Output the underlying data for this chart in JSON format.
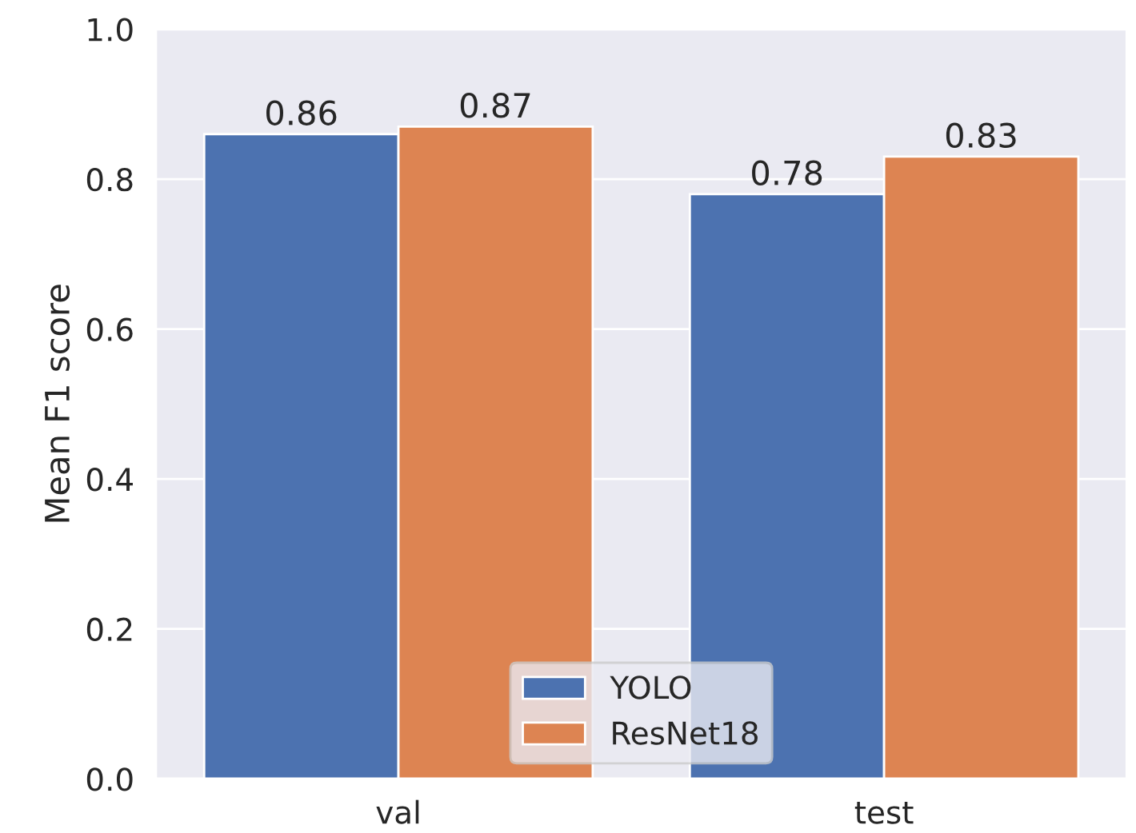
{
  "chart_data": {
    "type": "bar",
    "ylabel": "Mean F1 score",
    "categories": [
      "val",
      "test"
    ],
    "series": [
      {
        "name": "YOLO",
        "color": "#4c72b0",
        "values": [
          0.86,
          0.78
        ]
      },
      {
        "name": "ResNet18",
        "color": "#dd8452",
        "values": [
          0.87,
          0.83
        ]
      }
    ],
    "ylim": [
      0.0,
      1.0
    ],
    "yticks": [
      {
        "value": 0.0,
        "label": "0.0"
      },
      {
        "value": 0.2,
        "label": "0.2"
      },
      {
        "value": 0.4,
        "label": "0.4"
      },
      {
        "value": 0.6,
        "label": "0.6"
      },
      {
        "value": 0.8,
        "label": "0.8"
      },
      {
        "value": 1.0,
        "label": "1.0"
      }
    ],
    "data_labels": true,
    "grid": "y",
    "legend": "bottom"
  }
}
